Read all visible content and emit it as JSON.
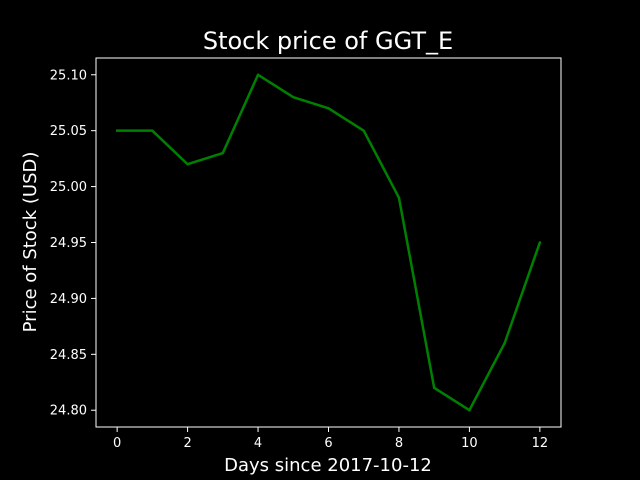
{
  "chart_data": {
    "type": "line",
    "title": "Stock price of GGT_E",
    "xlabel": "Days since 2017-10-12",
    "ylabel": "Price of Stock (USD)",
    "x": [
      0,
      1,
      2,
      3,
      4,
      5,
      6,
      7,
      8,
      9,
      10,
      11,
      12
    ],
    "series": [
      {
        "values": [
          25.05,
          25.05,
          25.02,
          25.03,
          25.1,
          25.08,
          25.07,
          25.05,
          24.99,
          24.82,
          24.8,
          24.86,
          24.95
        ],
        "color": "#008000"
      }
    ],
    "xticks": [
      "0",
      "2",
      "4",
      "6",
      "8",
      "10",
      "12"
    ],
    "yticks": [
      "24.80",
      "24.85",
      "24.90",
      "24.95",
      "25.00",
      "25.05",
      "25.10"
    ],
    "xlim": [
      -0.6,
      12.6
    ],
    "ylim": [
      24.785,
      25.115
    ],
    "grid": false,
    "background": "#000000",
    "foreground": "#ffffff"
  }
}
